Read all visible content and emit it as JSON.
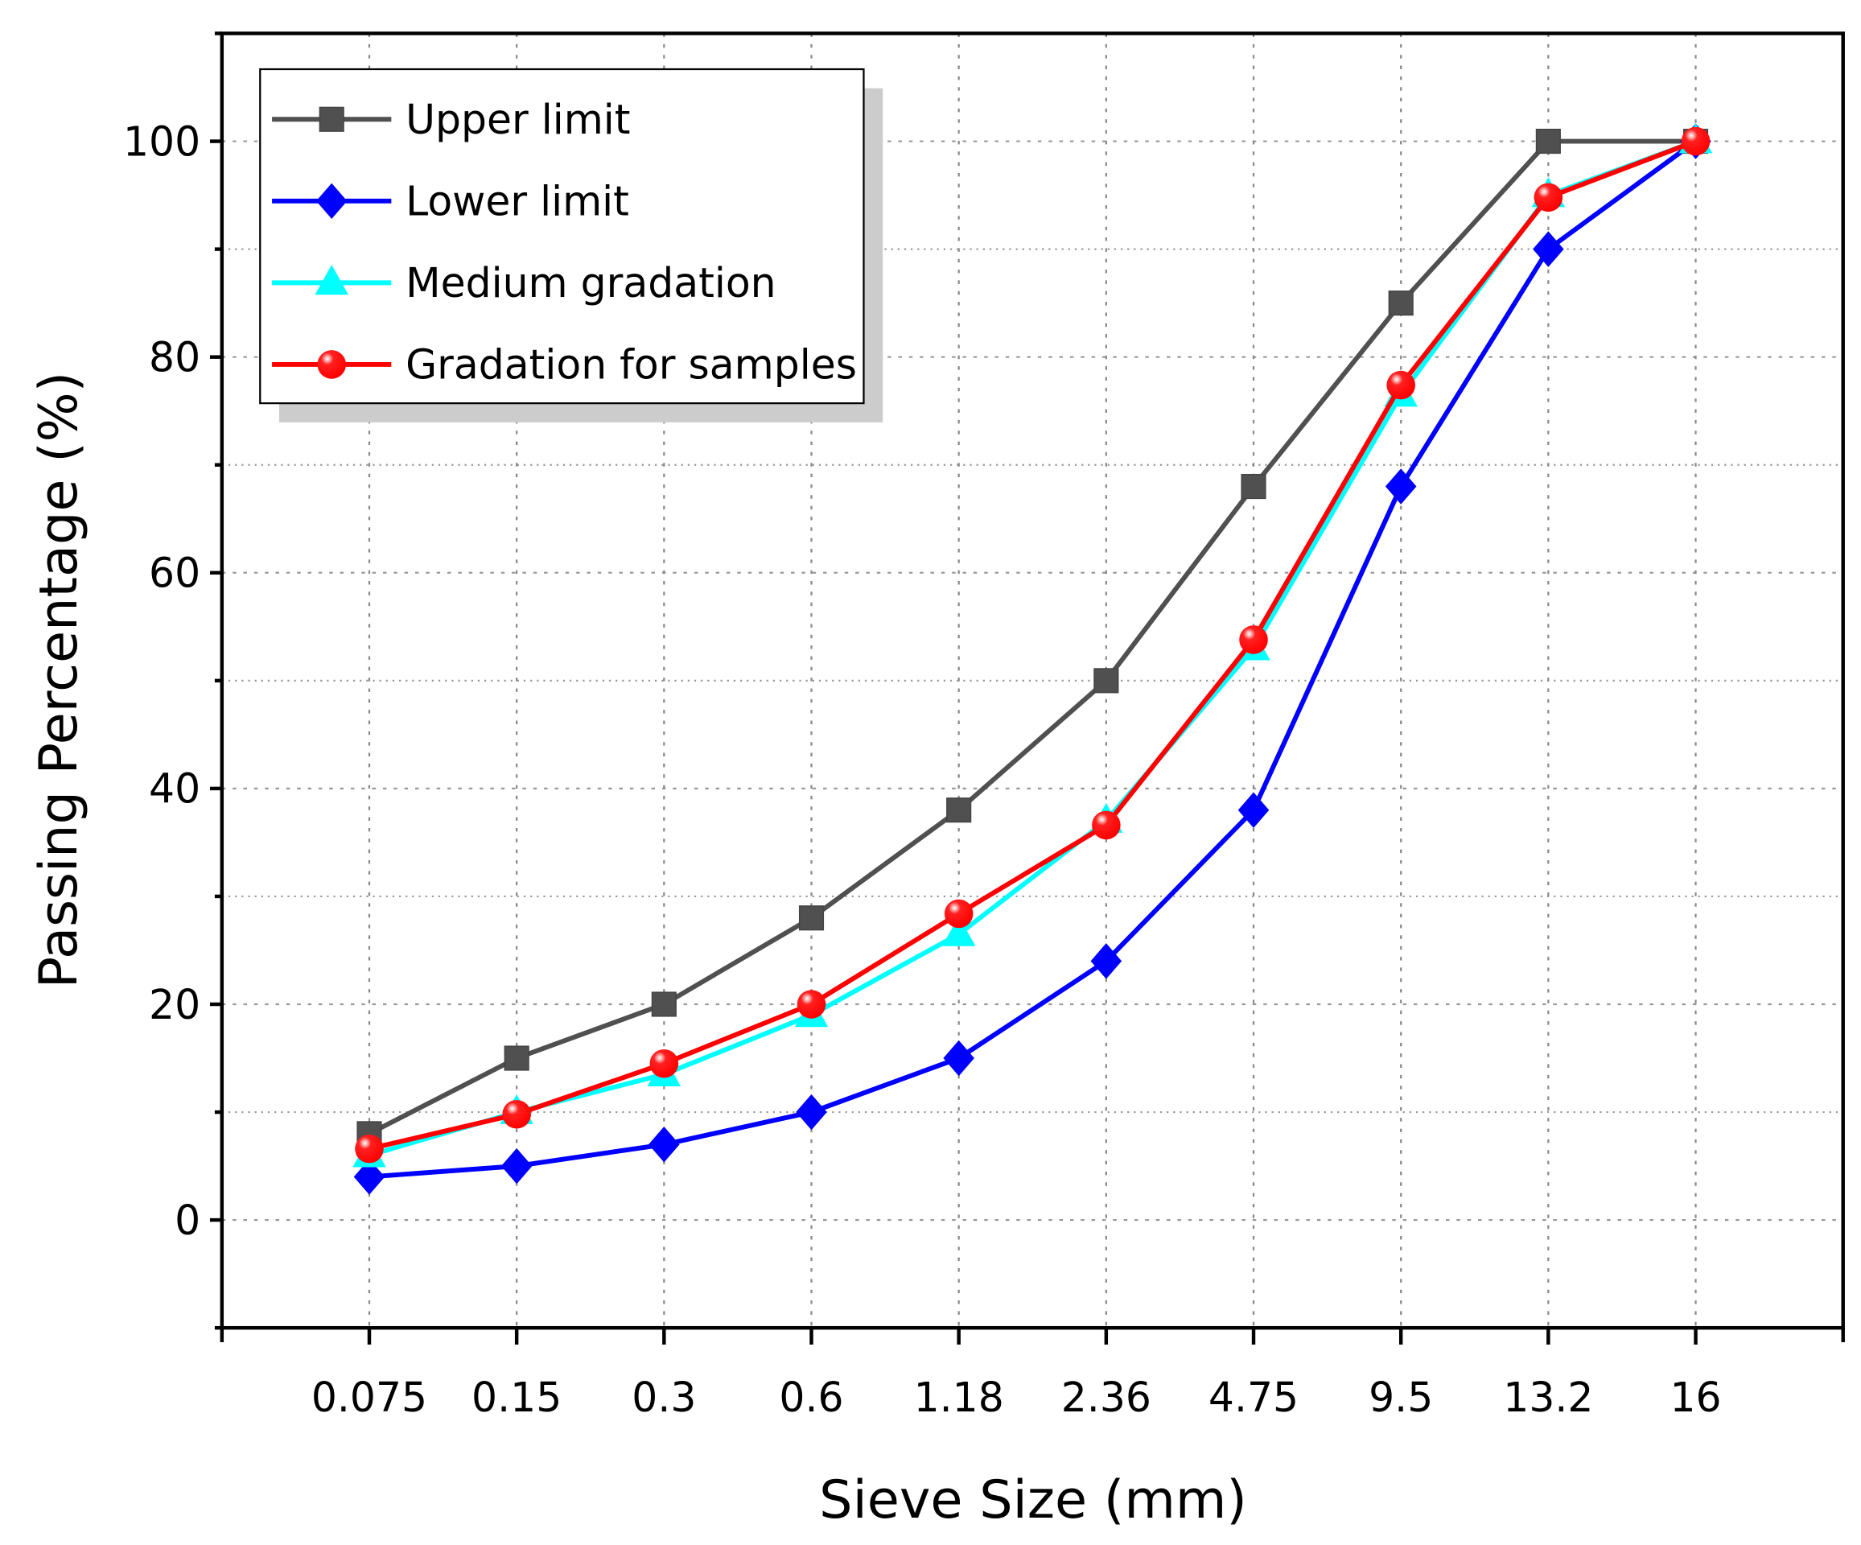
{
  "chart_data": {
    "type": "line",
    "title": "",
    "xlabel": "Sieve Size (mm)",
    "ylabel": "Passing Percentage (%)",
    "categories": [
      "0.075",
      "0.15",
      "0.3",
      "0.6",
      "1.18",
      "2.36",
      "4.75",
      "9.5",
      "13.2",
      "16"
    ],
    "ylim": [
      -10,
      110
    ],
    "yticks": [
      0,
      20,
      40,
      60,
      80,
      100
    ],
    "grid": true,
    "legend_position": "top-left",
    "series": [
      {
        "name": "Upper limit",
        "color": "#505050",
        "marker": "square",
        "values": [
          8,
          15,
          20,
          28,
          38,
          50,
          68,
          85,
          100,
          100
        ]
      },
      {
        "name": "Lower limit",
        "color": "#0000ff",
        "marker": "diamond",
        "values": [
          4,
          5,
          7,
          10,
          15,
          24,
          38,
          68,
          90,
          100
        ]
      },
      {
        "name": "Medium gradation",
        "color": "#00ffff",
        "marker": "triangle",
        "values": [
          6,
          10,
          13.5,
          19,
          26.5,
          37,
          53,
          76.5,
          95,
          100
        ]
      },
      {
        "name": "Gradation for samples",
        "color": "#ff0000",
        "marker": "sphere",
        "values": [
          6.6,
          9.8,
          14.5,
          20,
          28.4,
          36.6,
          53.8,
          77.4,
          94.8,
          100
        ]
      }
    ]
  }
}
